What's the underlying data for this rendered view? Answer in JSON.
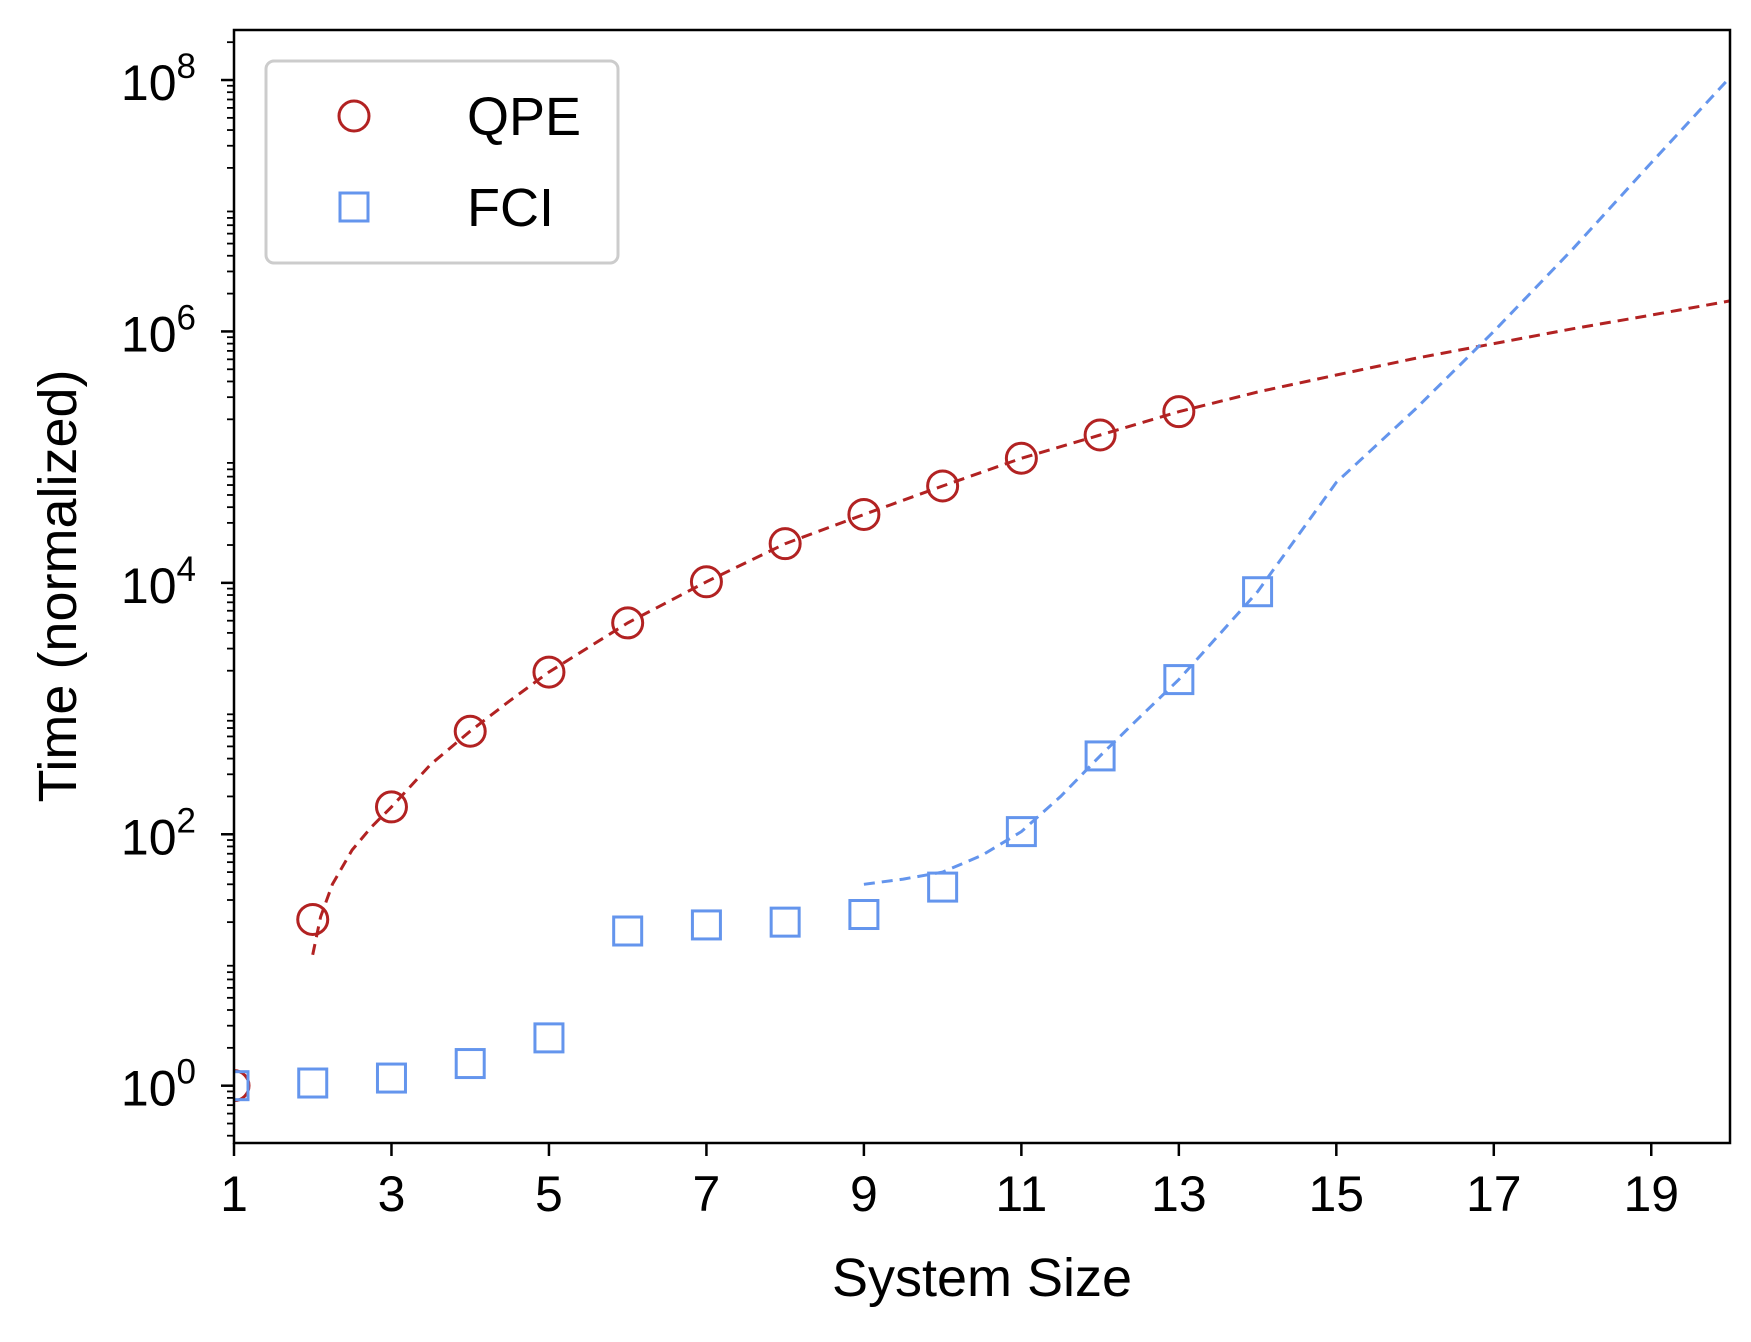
{
  "chart_data": {
    "type": "scatter",
    "title": "",
    "xlabel": "System Size",
    "ylabel": "Time (normalized)",
    "xlim": [
      1,
      20
    ],
    "ylim": [
      0.35,
      250000000
    ],
    "x_ticks": [
      1,
      3,
      5,
      7,
      9,
      11,
      13,
      15,
      17,
      19
    ],
    "x_tick_labels": [
      "1",
      "3",
      "5",
      "7",
      "9",
      "11",
      "13",
      "15",
      "17",
      "19"
    ],
    "y_scale": "log",
    "y_ticks": [
      1,
      100,
      10000,
      1000000,
      100000000
    ],
    "y_tick_labels": [
      {
        "base": "10",
        "exp": "0"
      },
      {
        "base": "10",
        "exp": "2"
      },
      {
        "base": "10",
        "exp": "4"
      },
      {
        "base": "10",
        "exp": "6"
      },
      {
        "base": "10",
        "exp": "8"
      }
    ],
    "grid": false,
    "legend": {
      "placement": "top-left"
    },
    "series": [
      {
        "name": "QPE",
        "marker": "circle",
        "color": "#b22222",
        "x": [
          1,
          2,
          3,
          4,
          5,
          6,
          7,
          8,
          9,
          10,
          11,
          12,
          13
        ],
        "y": [
          1,
          21,
          165,
          660,
          1950,
          4800,
          10200,
          20500,
          35000,
          59000,
          98000,
          150000,
          230000
        ]
      },
      {
        "name": "FCI",
        "marker": "square",
        "color": "#6495ed",
        "x": [
          1,
          2,
          3,
          4,
          5,
          6,
          7,
          8,
          9,
          10,
          11,
          12,
          13,
          14
        ],
        "y": [
          1,
          1.05,
          1.15,
          1.5,
          2.4,
          17,
          19,
          20,
          23,
          38,
          105,
          420,
          1700,
          8500
        ]
      }
    ],
    "fit_lines": [
      {
        "series": "QPE",
        "style": "dashed",
        "color": "#b22222",
        "x": [
          2,
          2.1,
          2.25,
          2.5,
          2.75,
          3,
          3.5,
          4,
          4.5,
          5,
          6,
          7,
          8,
          9,
          10,
          11,
          12,
          13,
          14,
          15,
          16,
          17,
          18,
          19,
          20
        ],
        "y": [
          11,
          22,
          40,
          75,
          115,
          165,
          360,
          660,
          1150,
          1950,
          4800,
          10200,
          20500,
          35000,
          59000,
          98000,
          150000,
          230000,
          330000,
          450000,
          610000,
          800000,
          1050000,
          1350000,
          1750000
        ]
      },
      {
        "series": "FCI",
        "style": "dashed",
        "color": "#6495ed",
        "x": [
          9,
          9.5,
          10,
          10.5,
          11,
          11.5,
          12,
          12.5,
          13,
          13.5,
          14,
          15,
          16,
          17,
          18,
          19,
          20
        ],
        "y": [
          40,
          44,
          50,
          68,
          105,
          200,
          420,
          850,
          1700,
          3800,
          8500,
          63000,
          240000,
          1000000,
          4500000,
          22000000,
          105000000
        ]
      }
    ]
  }
}
